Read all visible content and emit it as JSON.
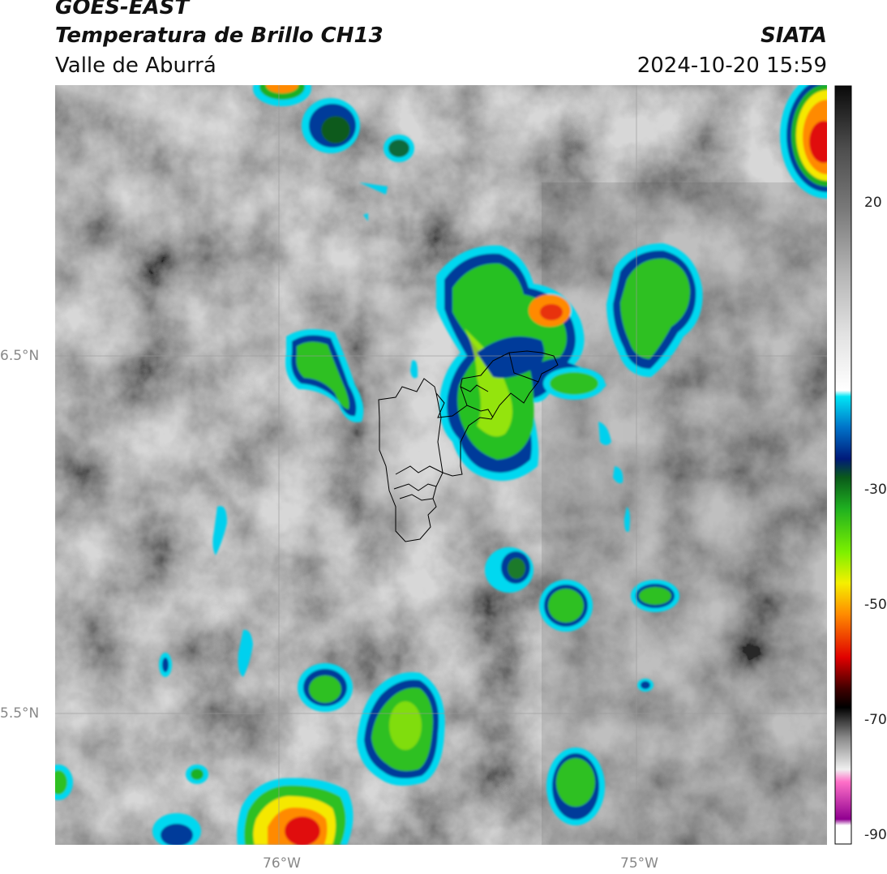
{
  "header": {
    "satellite": "GOES-EAST",
    "product": "Temperatura de Brillo CH13",
    "region": "Valle de Aburrá",
    "agency": "SIATA",
    "datetime": "2024-10-20 15:59"
  },
  "axes": {
    "lat_labels": [
      "6.5°N",
      "5.5°N"
    ],
    "lon_labels": [
      "76°W",
      "75°W"
    ]
  },
  "colorbar": {
    "ticks": [
      "20",
      "-30",
      "-50",
      "-70",
      "-90"
    ],
    "stops": [
      {
        "t": 30,
        "c": "#0a0a0a"
      },
      {
        "t": 20,
        "c": "#4d4d4d"
      },
      {
        "t": 10,
        "c": "#7a7a7a"
      },
      {
        "t": 0,
        "c": "#b4b4b4"
      },
      {
        "t": -10,
        "c": "#e2e2e2"
      },
      {
        "t": -19,
        "c": "#ffffff"
      },
      {
        "t": -20,
        "c": "#00e5f5"
      },
      {
        "t": -25,
        "c": "#0072c8"
      },
      {
        "t": -30,
        "c": "#001a7a"
      },
      {
        "t": -33,
        "c": "#0a5a1a"
      },
      {
        "t": -38,
        "c": "#1fb020"
      },
      {
        "t": -45,
        "c": "#7cf000"
      },
      {
        "t": -50,
        "c": "#f5f000"
      },
      {
        "t": -55,
        "c": "#ff8c00"
      },
      {
        "t": -62,
        "c": "#e00000"
      },
      {
        "t": -67,
        "c": "#400000"
      },
      {
        "t": -70,
        "c": "#000000"
      },
      {
        "t": -75,
        "c": "#8c8c8c"
      },
      {
        "t": -80,
        "c": "#f0f0f0"
      },
      {
        "t": -82,
        "c": "#ff70c8"
      },
      {
        "t": -88,
        "c": "#900090"
      },
      {
        "t": -89,
        "c": "#ffffff"
      },
      {
        "t": -92,
        "c": "#ffffff"
      }
    ]
  }
}
